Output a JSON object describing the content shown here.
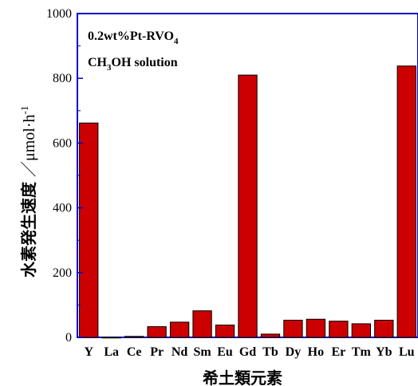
{
  "chart_data": {
    "type": "bar",
    "categories": [
      "Y",
      "La",
      "Ce",
      "Pr",
      "Nd",
      "Sm",
      "Eu",
      "Gd",
      "Tb",
      "Dy",
      "Ho",
      "Er",
      "Tm",
      "Yb",
      "Lu"
    ],
    "values": [
      662,
      0,
      3,
      33,
      47,
      82,
      38,
      810,
      10,
      53,
      56,
      50,
      42,
      53,
      838
    ],
    "xlabel": "希土類元素",
    "ylabel_main": "水素発生速度",
    "ylabel_unit": "／μmol·h",
    "ylabel_unit_sup": "-1",
    "ylim": [
      0,
      1000
    ],
    "yticks": [
      "0",
      "200",
      "400",
      "600",
      "800",
      "1000"
    ],
    "annotations": {
      "line1_main": "0.2wt%Pt-RVO",
      "line1_sub": "4",
      "line2_pre": "CH",
      "line2_sub": "3",
      "line2_post": "OH solution"
    },
    "colors": {
      "bar": "#cc0000",
      "axis_frame": "#0000cc",
      "bar_outline": "#000000"
    }
  }
}
